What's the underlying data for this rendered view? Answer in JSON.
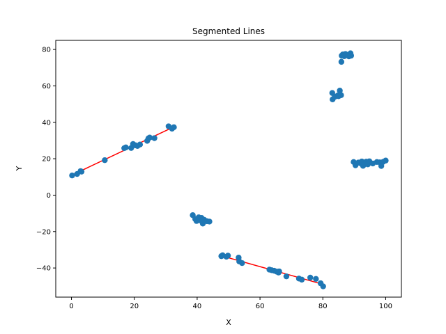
{
  "chart_data": {
    "type": "scatter",
    "title": "Segmented Lines",
    "xlabel": "X",
    "ylabel": "Y",
    "xlim": [
      -5,
      105
    ],
    "ylim": [
      -56,
      85
    ],
    "xticks": [
      0,
      20,
      40,
      60,
      80,
      100
    ],
    "yticks": [
      -40,
      -20,
      0,
      20,
      40,
      60,
      80
    ],
    "grid": false,
    "colors": {
      "points": "#1f77b4",
      "lines": "#ff0000"
    },
    "points": [
      [
        0.2,
        10.8
      ],
      [
        1.8,
        11.6
      ],
      [
        2.9,
        13.2
      ],
      [
        3.2,
        12.9
      ],
      [
        10.6,
        19.2
      ],
      [
        16.8,
        25.8
      ],
      [
        17.3,
        26.2
      ],
      [
        19.0,
        25.9
      ],
      [
        19.6,
        28.1
      ],
      [
        20.3,
        27.4
      ],
      [
        21.0,
        27.0
      ],
      [
        21.8,
        27.8
      ],
      [
        24.1,
        29.8
      ],
      [
        24.5,
        31.2
      ],
      [
        24.9,
        31.6
      ],
      [
        26.4,
        31.3
      ],
      [
        30.9,
        37.8
      ],
      [
        32.0,
        36.5
      ],
      [
        32.6,
        37.3
      ],
      [
        38.6,
        -11.0
      ],
      [
        39.4,
        -13.1
      ],
      [
        39.8,
        -14.2
      ],
      [
        40.5,
        -12.2
      ],
      [
        41.0,
        -13.9
      ],
      [
        41.4,
        -12.5
      ],
      [
        41.8,
        -15.6
      ],
      [
        42.2,
        -13.5
      ],
      [
        42.6,
        -14.1
      ],
      [
        43.1,
        -14.3
      ],
      [
        43.9,
        -14.5
      ],
      [
        47.7,
        -33.5
      ],
      [
        48.1,
        -33.0
      ],
      [
        49.3,
        -33.8
      ],
      [
        49.8,
        -33.2
      ],
      [
        53.2,
        -34.3
      ],
      [
        53.4,
        -36.4
      ],
      [
        54.3,
        -37.3
      ],
      [
        63.0,
        -40.9
      ],
      [
        63.7,
        -41.2
      ],
      [
        64.5,
        -41.5
      ],
      [
        65.3,
        -42.0
      ],
      [
        65.9,
        -42.5
      ],
      [
        66.1,
        -41.9
      ],
      [
        68.4,
        -44.6
      ],
      [
        72.4,
        -45.8
      ],
      [
        73.3,
        -46.4
      ],
      [
        76.0,
        -45.3
      ],
      [
        77.8,
        -46.0
      ],
      [
        79.3,
        -48.4
      ],
      [
        80.1,
        -50.1
      ],
      [
        83.0,
        56.1
      ],
      [
        83.1,
        52.6
      ],
      [
        83.8,
        54.0
      ],
      [
        84.7,
        54.7
      ],
      [
        85.0,
        54.3
      ],
      [
        85.4,
        57.4
      ],
      [
        85.8,
        54.9
      ],
      [
        85.9,
        73.2
      ],
      [
        86.0,
        76.6
      ],
      [
        86.4,
        77.3
      ],
      [
        86.8,
        76.3
      ],
      [
        87.2,
        77.5
      ],
      [
        88.3,
        76.2
      ],
      [
        88.8,
        77.9
      ],
      [
        89.0,
        76.6
      ],
      [
        89.8,
        18.2
      ],
      [
        90.4,
        16.4
      ],
      [
        91.3,
        17.9
      ],
      [
        92.0,
        17.5
      ],
      [
        92.4,
        18.5
      ],
      [
        92.8,
        16.1
      ],
      [
        93.3,
        17.0
      ],
      [
        93.8,
        18.4
      ],
      [
        94.3,
        16.9
      ],
      [
        94.8,
        18.6
      ],
      [
        95.9,
        17.4
      ],
      [
        97.2,
        18.2
      ],
      [
        98.1,
        18.0
      ],
      [
        98.6,
        16.0
      ],
      [
        99.2,
        18.3
      ],
      [
        100.0,
        19.0
      ]
    ],
    "segments": [
      {
        "x": [
          0,
          32.7
        ],
        "y": [
          10.9,
          37.6
        ]
      },
      {
        "x": [
          38.6,
          43.9
        ],
        "y": [
          -12.3,
          -14.9
        ]
      },
      {
        "x": [
          47.7,
          80.1
        ],
        "y": [
          -33.3,
          -49.0
        ]
      },
      {
        "x": [
          83.0,
          85.8
        ],
        "y": [
          54.3,
          55.7
        ]
      },
      {
        "x": [
          85.9,
          89.0
        ],
        "y": [
          76.4,
          77.5
        ]
      },
      {
        "x": [
          89.8,
          100.0
        ],
        "y": [
          17.2,
          18.6
        ]
      }
    ]
  }
}
